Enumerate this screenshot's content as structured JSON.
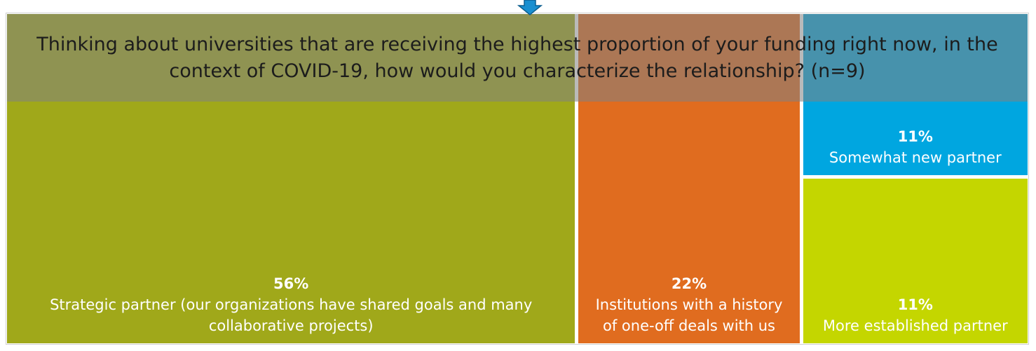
{
  "chart_data": {
    "type": "treemap",
    "title": "Thinking about universities that are receiving the highest proportion of your funding right now, in the context of COVID-19, how would you characterize the relationship?  (n=9)",
    "categories": [
      "Strategic partner (our organizations have shared goals and many collaborative projects)",
      "Institutions with a history of one-off deals with us",
      "Somewhat new partner",
      "More established partner"
    ],
    "values": [
      56,
      22,
      11,
      11
    ],
    "value_labels": [
      "56%",
      "22%",
      "11%",
      "11%"
    ],
    "colors": [
      "#a0a81a",
      "#e06c1f",
      "#00a6e0",
      "#c4d600"
    ]
  }
}
